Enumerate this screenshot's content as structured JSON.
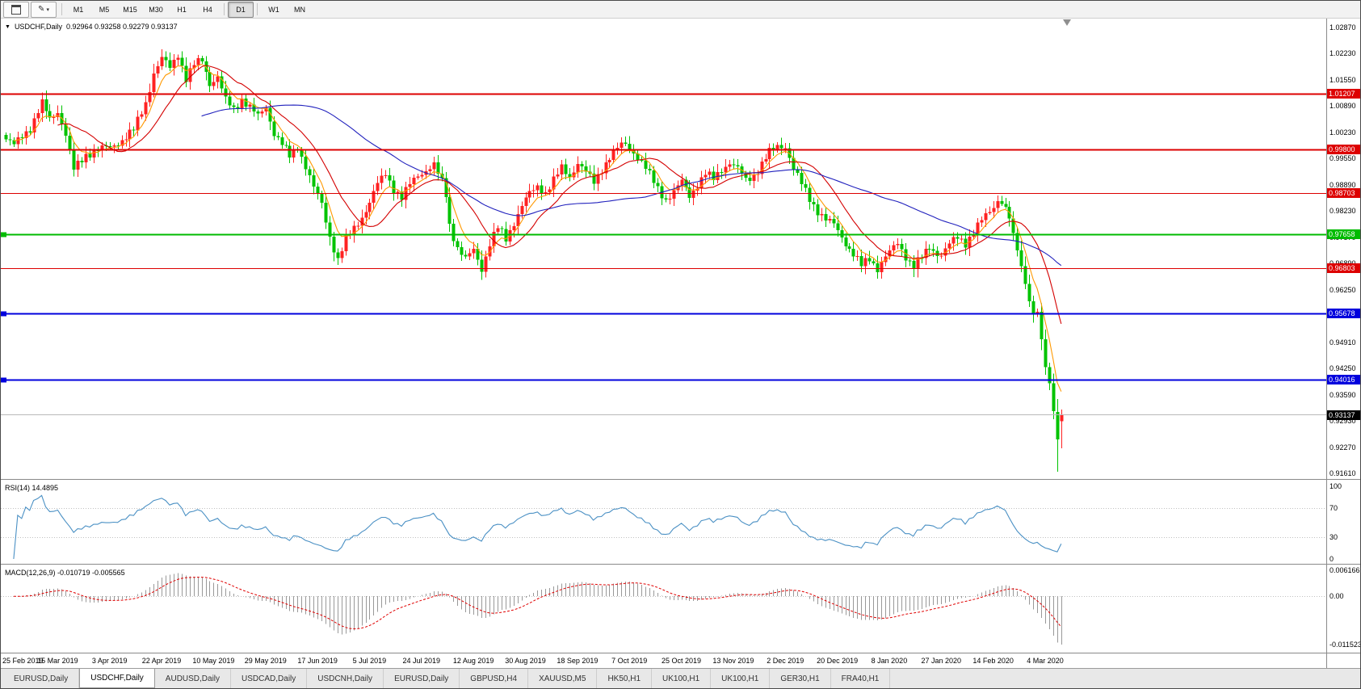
{
  "toolbar": {
    "timeframe_groups": [
      [
        "M1",
        "M5",
        "M15",
        "M30",
        "H1",
        "H4"
      ],
      [
        "D1"
      ],
      [
        "W1",
        "MN"
      ]
    ],
    "active_timeframe": "D1"
  },
  "chart": {
    "symbol": "USDCHF,Daily",
    "ohlc_text": "0.92964 0.93258 0.92279 0.93137",
    "open": "0.92964",
    "high": "0.93258",
    "low": "0.92279",
    "close": "0.93137",
    "price_axis_labels": [
      "1.02870",
      "1.02230",
      "1.01550",
      "1.00890",
      "1.00230",
      "0.99550",
      "0.98890",
      "0.98230",
      "0.97570",
      "0.96890",
      "0.96250",
      "0.95590",
      "0.94910",
      "0.94250",
      "0.93590",
      "0.92930",
      "0.92270",
      "0.91610"
    ],
    "hlines": [
      {
        "label": "1.01207",
        "value": 1.01207,
        "color": "#dd0000",
        "width": 2,
        "edge_marker": false
      },
      {
        "label": "0.99800",
        "value": 0.998,
        "color": "#dd0000",
        "width": 2,
        "edge_marker": false
      },
      {
        "label": "0.98703",
        "value": 0.98703,
        "color": "#dd0000",
        "width": 1,
        "edge_marker": false
      },
      {
        "label": "0.97658",
        "value": 0.97658,
        "color": "#00bb00",
        "width": 2,
        "edge_marker": true
      },
      {
        "label": "0.96803",
        "value": 0.96803,
        "color": "#dd0000",
        "width": 1,
        "edge_marker": false
      },
      {
        "label": "0.95678",
        "value": 0.95678,
        "color": "#0000dd",
        "width": 2,
        "edge_marker": true
      },
      {
        "label": "0.94016",
        "value": 0.94016,
        "color": "#0000dd",
        "width": 2,
        "edge_marker": true
      }
    ],
    "bid_price": {
      "label": "0.93137",
      "value": 0.93137,
      "tag_bg": "#000000",
      "line_color": "#b9b9b9"
    },
    "date_axis_labels": [
      "25 Feb 2019",
      "15 Mar 2019",
      "3 Apr 2019",
      "22 Apr 2019",
      "10 May 2019",
      "29 May 2019",
      "17 Jun 2019",
      "5 Jul 2019",
      "24 Jul 2019",
      "12 Aug 2019",
      "30 Aug 2019",
      "18 Sep 2019",
      "7 Oct 2019",
      "25 Oct 2019",
      "13 Nov 2019",
      "2 Dec 2019",
      "20 Dec 2019",
      "8 Jan 2020",
      "27 Jan 2020",
      "14 Feb 2020",
      "4 Mar 2020"
    ],
    "colors": {
      "background": "#ffffff",
      "bull_candle": "#ff2222",
      "bear_candle": "#00c300",
      "ma_fast": "#ff9900",
      "ma_mid": "#d40000",
      "ma_slow": "#2121bd",
      "axis_text": "#000000"
    }
  },
  "chart_data": {
    "type": "candlestick",
    "symbol": "USDCHF",
    "timeframe": "D1",
    "ylim": [
      0.9161,
      1.0287
    ],
    "x_labels": [
      "25 Feb 2019",
      "15 Mar 2019",
      "3 Apr 2019",
      "22 Apr 2019",
      "10 May 2019",
      "29 May 2019",
      "17 Jun 2019",
      "5 Jul 2019",
      "24 Jul 2019",
      "12 Aug 2019",
      "30 Aug 2019",
      "18 Sep 2019",
      "7 Oct 2019",
      "25 Oct 2019",
      "13 Nov 2019",
      "2 Dec 2019",
      "20 Dec 2019",
      "8 Jan 2020",
      "27 Jan 2020",
      "14 Feb 2020",
      "4 Mar 2020"
    ],
    "candles_per_label": 13,
    "candle_count": 265,
    "close_waypoints": [
      [
        0,
        1.0005
      ],
      [
        2,
        0.999
      ],
      [
        4,
        1.0015
      ],
      [
        6,
        1.0035
      ],
      [
        9,
        1.0095
      ],
      [
        11,
        1.0055
      ],
      [
        13,
        1.0078
      ],
      [
        15,
        1.0018
      ],
      [
        17,
        0.9928
      ],
      [
        20,
        0.9968
      ],
      [
        23,
        0.998
      ],
      [
        26,
        0.9985
      ],
      [
        29,
        1.0005
      ],
      [
        32,
        1.0028
      ],
      [
        35,
        1.0098
      ],
      [
        37,
        1.0172
      ],
      [
        39,
        1.0208
      ],
      [
        41,
        1.0185
      ],
      [
        43,
        1.0222
      ],
      [
        45,
        1.0158
      ],
      [
        47,
        1.0192
      ],
      [
        49,
        1.0205
      ],
      [
        51,
        1.0148
      ],
      [
        53,
        1.0162
      ],
      [
        55,
        1.0102
      ],
      [
        57,
        1.0082
      ],
      [
        59,
        1.0108
      ],
      [
        61,
        1.0085
      ],
      [
        63,
        1.0062
      ],
      [
        65,
        1.0088
      ],
      [
        67,
        1.0022
      ],
      [
        69,
        0.9992
      ],
      [
        71,
        0.9962
      ],
      [
        73,
        0.9988
      ],
      [
        75,
        0.9938
      ],
      [
        77,
        0.9882
      ],
      [
        79,
        0.9842
      ],
      [
        81,
        0.9762
      ],
      [
        83,
        0.9702
      ],
      [
        85,
        0.9752
      ],
      [
        87,
        0.9782
      ],
      [
        89,
        0.9812
      ],
      [
        91,
        0.9845
      ],
      [
        93,
        0.9892
      ],
      [
        95,
        0.9922
      ],
      [
        97,
        0.9882
      ],
      [
        99,
        0.9856
      ],
      [
        101,
        0.9892
      ],
      [
        103,
        0.9918
      ],
      [
        105,
        0.9928
      ],
      [
        107,
        0.9938
      ],
      [
        109,
        0.9898
      ],
      [
        110,
        0.9868
      ],
      [
        111,
        0.9792
      ],
      [
        113,
        0.9732
      ],
      [
        115,
        0.9702
      ],
      [
        117,
        0.9728
      ],
      [
        119,
        0.9682
      ],
      [
        121,
        0.9742
      ],
      [
        123,
        0.9782
      ],
      [
        125,
        0.9755
      ],
      [
        127,
        0.9798
      ],
      [
        129,
        0.9838
      ],
      [
        131,
        0.9868
      ],
      [
        133,
        0.9888
      ],
      [
        135,
        0.9872
      ],
      [
        137,
        0.9902
      ],
      [
        139,
        0.9932
      ],
      [
        141,
        0.9912
      ],
      [
        143,
        0.9948
      ],
      [
        145,
        0.9922
      ],
      [
        147,
        0.9896
      ],
      [
        149,
        0.9932
      ],
      [
        151,
        0.9962
      ],
      [
        153,
        0.9982
      ],
      [
        155,
        0.9995
      ],
      [
        157,
        0.9975
      ],
      [
        159,
        0.9948
      ],
      [
        161,
        0.9915
      ],
      [
        163,
        0.9882
      ],
      [
        165,
        0.9855
      ],
      [
        167,
        0.9872
      ],
      [
        169,
        0.9898
      ],
      [
        171,
        0.9865
      ],
      [
        173,
        0.9892
      ],
      [
        175,
        0.9918
      ],
      [
        177,
        0.9905
      ],
      [
        179,
        0.9932
      ],
      [
        181,
        0.9948
      ],
      [
        183,
        0.993
      ],
      [
        185,
        0.9902
      ],
      [
        187,
        0.9916
      ],
      [
        189,
        0.9944
      ],
      [
        191,
        0.9972
      ],
      [
        193,
        0.9988
      ],
      [
        195,
        0.999
      ],
      [
        197,
        0.9932
      ],
      [
        199,
        0.9892
      ],
      [
        201,
        0.9856
      ],
      [
        203,
        0.9826
      ],
      [
        205,
        0.9802
      ],
      [
        207,
        0.979
      ],
      [
        208,
        0.9776
      ],
      [
        210,
        0.9746
      ],
      [
        212,
        0.9716
      ],
      [
        214,
        0.9686
      ],
      [
        216,
        0.9706
      ],
      [
        218,
        0.9682
      ],
      [
        220,
        0.971
      ],
      [
        221,
        0.972
      ],
      [
        223,
        0.9744
      ],
      [
        225,
        0.9712
      ],
      [
        227,
        0.9686
      ],
      [
        229,
        0.9706
      ],
      [
        231,
        0.9734
      ],
      [
        233,
        0.972
      ],
      [
        234,
        0.9716
      ],
      [
        236,
        0.974
      ],
      [
        238,
        0.9758
      ],
      [
        240,
        0.9746
      ],
      [
        242,
        0.9774
      ],
      [
        244,
        0.98
      ],
      [
        246,
        0.9824
      ],
      [
        248,
        0.985
      ],
      [
        250,
        0.9836
      ],
      [
        251,
        0.9806
      ],
      [
        252,
        0.977
      ],
      [
        253,
        0.9726
      ],
      [
        254,
        0.9686
      ],
      [
        255,
        0.9642
      ],
      [
        256,
        0.9598
      ],
      [
        257,
        0.9566
      ],
      [
        258,
        0.9572
      ],
      [
        259,
        0.9502
      ],
      [
        260,
        0.9432
      ],
      [
        261,
        0.9392
      ],
      [
        262,
        0.9322
      ],
      [
        263,
        0.925
      ],
      [
        264,
        0.93137
      ]
    ],
    "final_candles": {
      "263": {
        "o": 0.932,
        "h": 0.9352,
        "l": 0.9169,
        "c": 0.925
      },
      "264": {
        "o": 0.92964,
        "h": 0.93258,
        "l": 0.92279,
        "c": 0.93137
      }
    },
    "moving_averages": [
      {
        "period": 6,
        "type": "ema",
        "color": "#ff9900"
      },
      {
        "period": 14,
        "type": "sma",
        "color": "#d40000"
      },
      {
        "period": 50,
        "type": "sma",
        "color": "#2121bd"
      }
    ]
  },
  "indicators": {
    "rsi": {
      "label": "RSI(14) 14.4895",
      "period": 14,
      "current_value": 14.4895,
      "axis_labels": [
        "100",
        "70",
        "30",
        "0"
      ],
      "dotted_levels": [
        70,
        30
      ],
      "line_color": "#4a90c4"
    },
    "macd": {
      "label": "MACD(12,26,9) -0.010719 -0.005565",
      "fast_ema": 12,
      "slow_ema": 26,
      "signal_period": 9,
      "macd_value": "-0.010719",
      "signal_value": "-0.005565",
      "axis_labels": [
        "0.006166",
        "0.00",
        "-0.011523"
      ],
      "axis_max": 0.006166,
      "axis_min": -0.011523,
      "histogram_color": "#999999",
      "signal_color": "#e00000"
    }
  },
  "tabs": [
    {
      "label": "EURUSD,Daily",
      "active": false
    },
    {
      "label": "USDCHF,Daily",
      "active": true
    },
    {
      "label": "AUDUSD,Daily",
      "active": false
    },
    {
      "label": "USDCAD,Daily",
      "active": false
    },
    {
      "label": "USDCNH,Daily",
      "active": false
    },
    {
      "label": "EURUSD,Daily",
      "active": false
    },
    {
      "label": "GBPUSD,H4",
      "active": false
    },
    {
      "label": "XAUUSD,M5",
      "active": false
    },
    {
      "label": "HK50,H1",
      "active": false
    },
    {
      "label": "UK100,H1",
      "active": false
    },
    {
      "label": "UK100,H1",
      "active": false
    },
    {
      "label": "GER30,H1",
      "active": false
    },
    {
      "label": "FRA40,H1",
      "active": false
    }
  ]
}
